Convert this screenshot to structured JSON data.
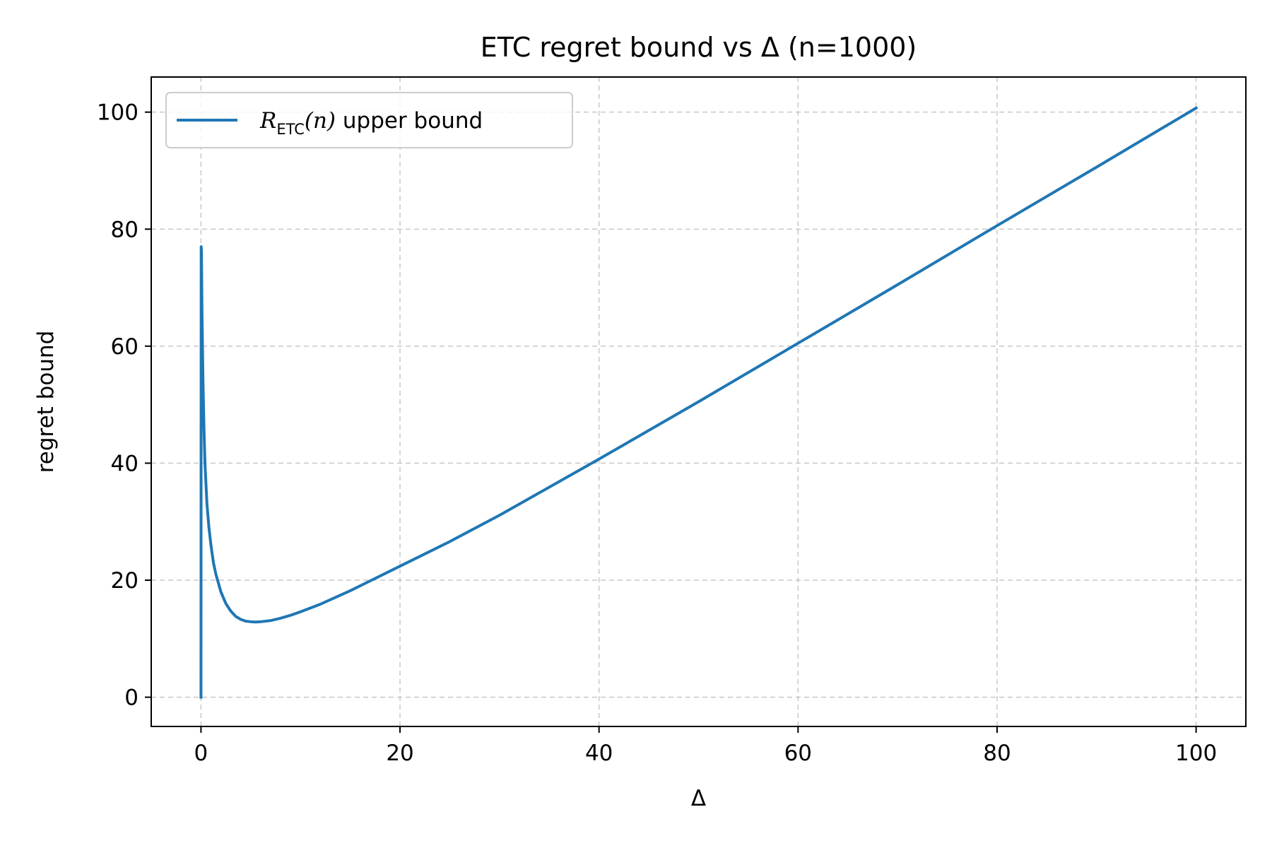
{
  "chart_data": {
    "type": "line",
    "title": "ETC regret bound vs Δ (n=1000)",
    "xlabel": "Δ",
    "ylabel": "regret bound",
    "xlim": [
      -5,
      105
    ],
    "ylim": [
      -5,
      106
    ],
    "x_ticks": [
      0,
      20,
      40,
      60,
      80,
      100
    ],
    "y_ticks": [
      0,
      20,
      40,
      60,
      80,
      100
    ],
    "grid": true,
    "legend_position": "top-left",
    "n": 1000,
    "series": [
      {
        "name": "R_ETC(n) upper bound",
        "legend_main": "R",
        "legend_sub": "ETC",
        "legend_arg": "(n)",
        "legend_rest": " upper bound",
        "color": "#1f77b4",
        "x": [
          0,
          0.02,
          0.05,
          0.1,
          0.2,
          0.3,
          0.4,
          0.6,
          0.8,
          1,
          1.25,
          1.5,
          2,
          2.5,
          3,
          3.5,
          4,
          4.5,
          5,
          5.5,
          6,
          7,
          8,
          9,
          10,
          12,
          15,
          20,
          25,
          30,
          40,
          50,
          60,
          70,
          80,
          90,
          100
        ],
        "y": [
          0,
          77,
          76,
          66,
          54,
          46,
          40,
          33,
          29,
          26,
          23,
          21,
          18,
          16,
          14.7,
          13.8,
          13.3,
          13,
          12.9,
          12.85,
          12.9,
          13.1,
          13.5,
          14,
          14.6,
          15.9,
          18.2,
          22.4,
          26.6,
          31.1,
          40.7,
          50.5,
          60.5,
          70.5,
          80.6,
          90.6,
          100.7
        ]
      }
    ]
  }
}
